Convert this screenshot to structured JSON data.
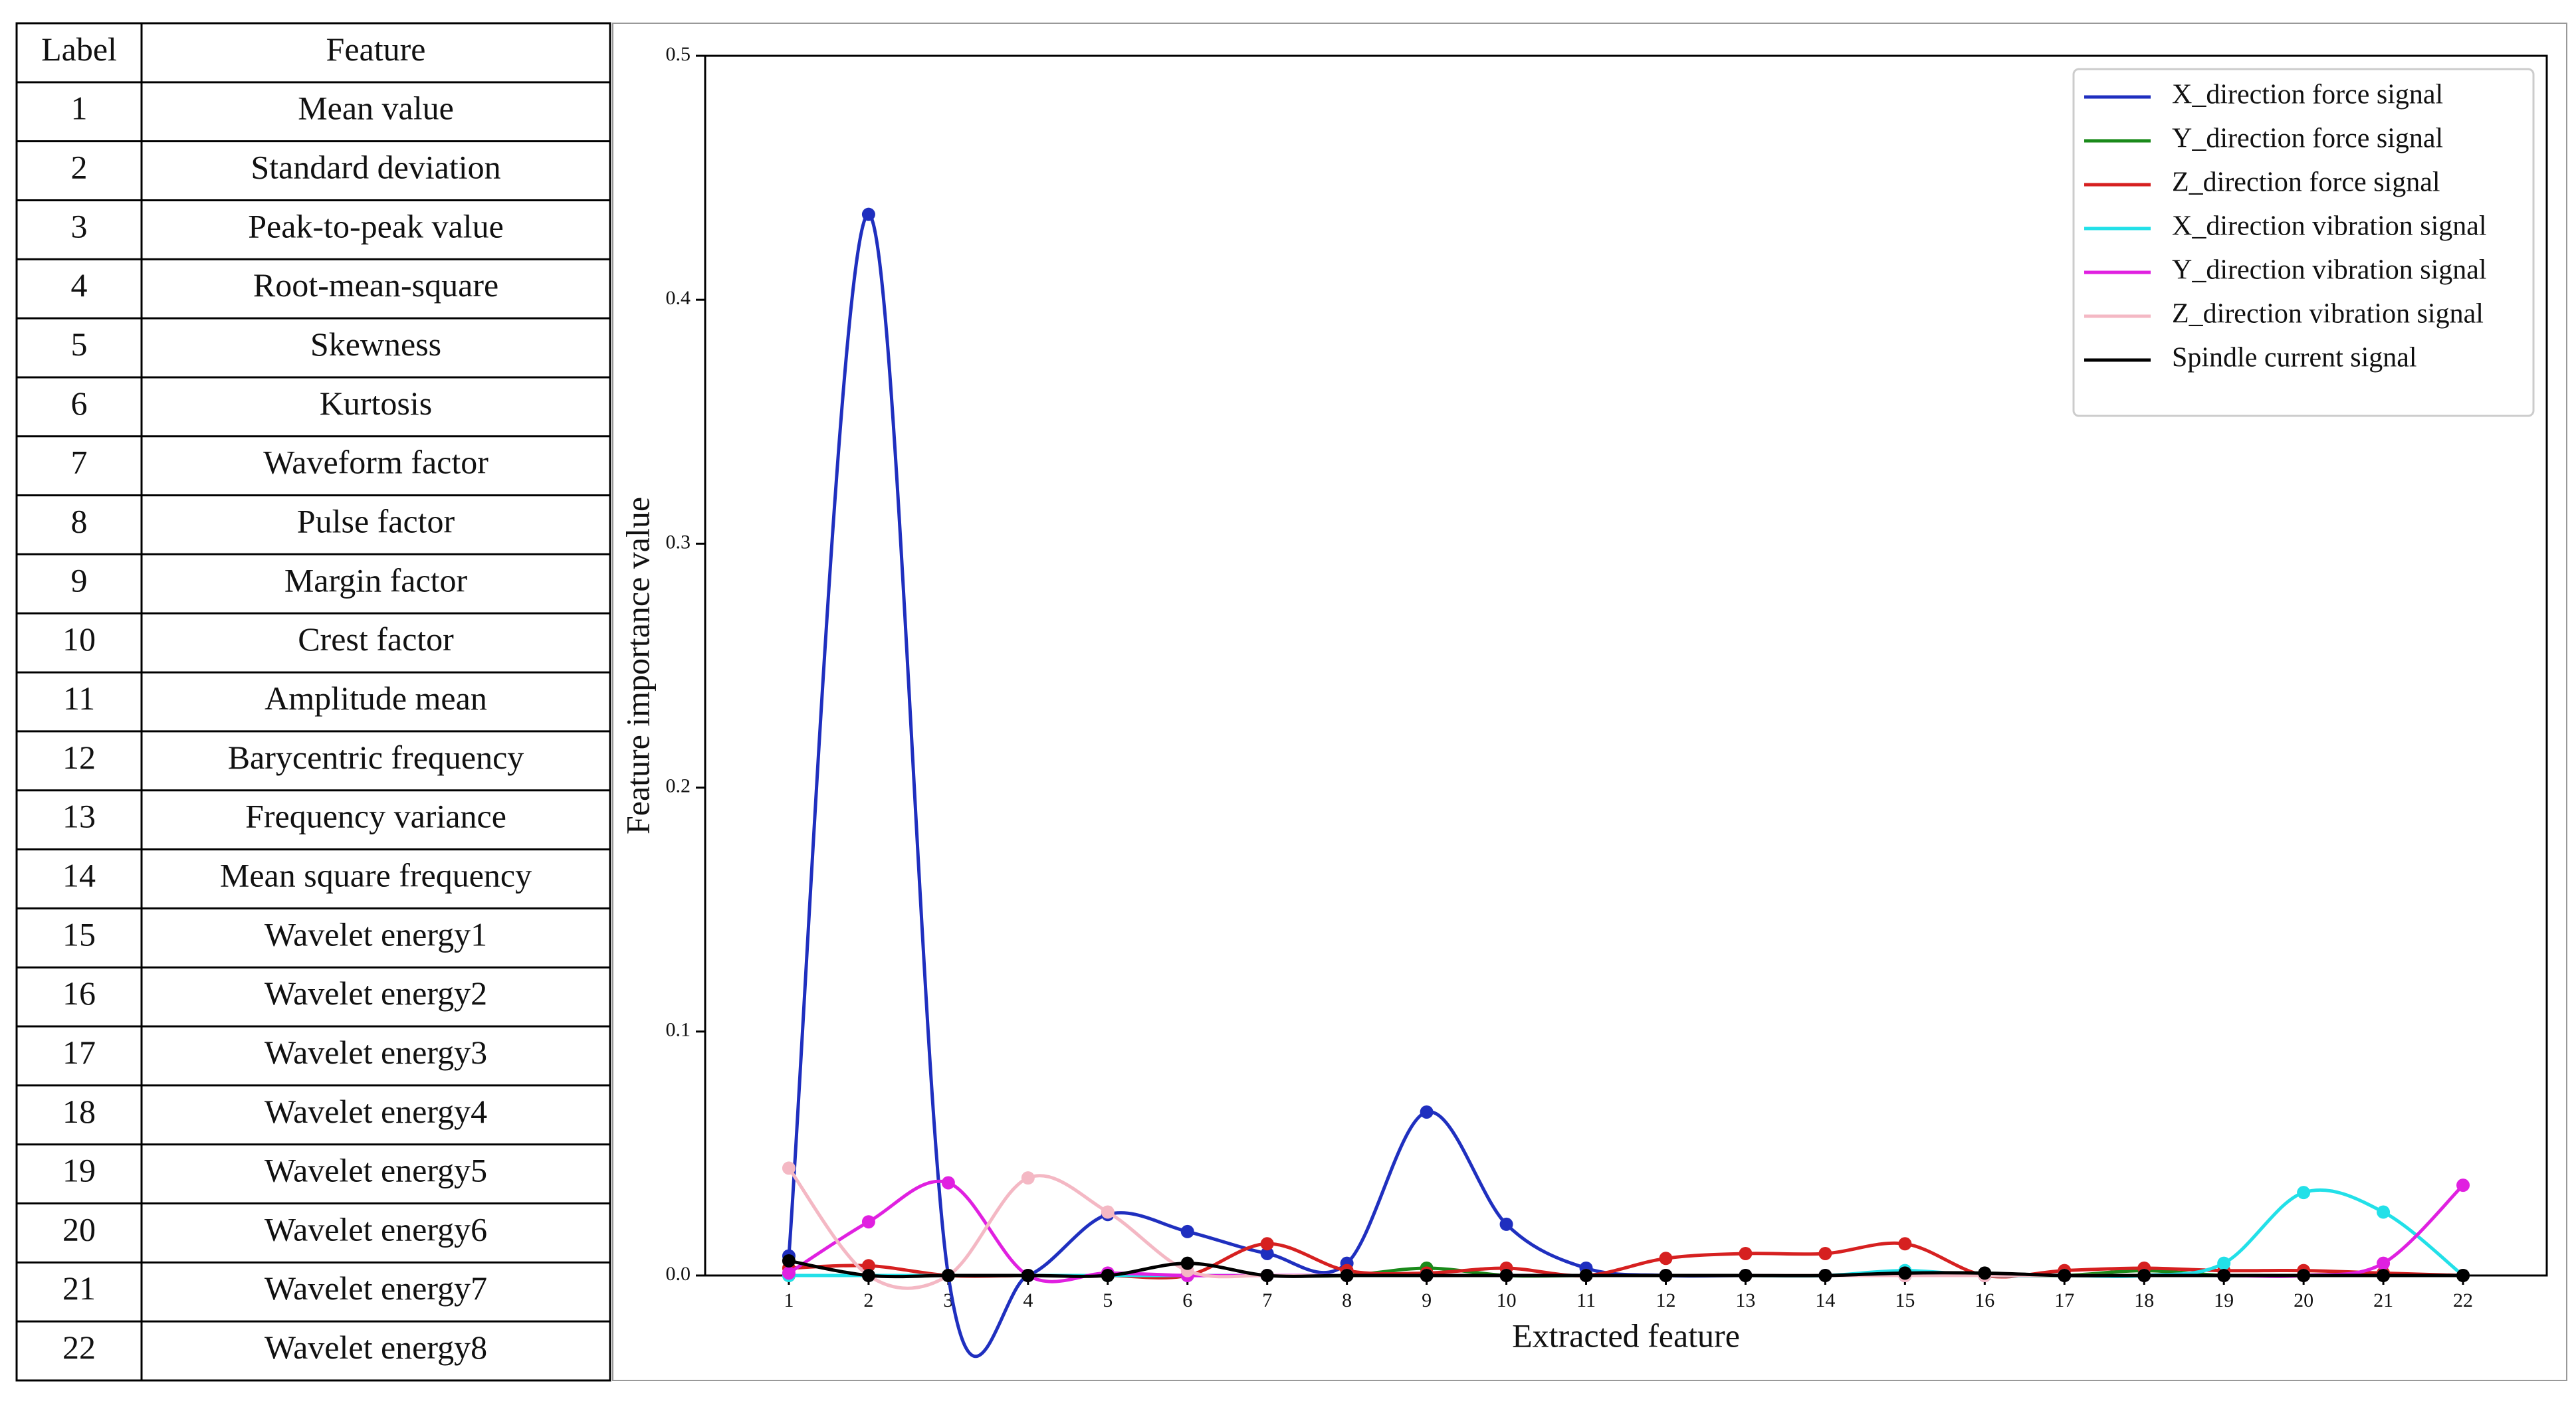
{
  "table": {
    "header": [
      "Label",
      "Feature"
    ],
    "rows": [
      [
        1,
        "Mean value"
      ],
      [
        2,
        "Standard deviation"
      ],
      [
        3,
        "Peak-to-peak value"
      ],
      [
        4,
        "Root-mean-square"
      ],
      [
        5,
        "Skewness"
      ],
      [
        6,
        "Kurtosis"
      ],
      [
        7,
        "Waveform factor"
      ],
      [
        8,
        "Pulse factor"
      ],
      [
        9,
        "Margin factor"
      ],
      [
        10,
        "Crest factor"
      ],
      [
        11,
        "Amplitude mean"
      ],
      [
        12,
        "Barycentric frequency"
      ],
      [
        13,
        "Frequency variance"
      ],
      [
        14,
        "Mean square frequency"
      ],
      [
        15,
        "Wavelet energy1"
      ],
      [
        16,
        "Wavelet energy2"
      ],
      [
        17,
        "Wavelet energy3"
      ],
      [
        18,
        "Wavelet energy4"
      ],
      [
        19,
        "Wavelet energy5"
      ],
      [
        20,
        "Wavelet energy6"
      ],
      [
        21,
        "Wavelet energy7"
      ],
      [
        22,
        "Wavelet energy8"
      ]
    ]
  },
  "chart_data": {
    "type": "line",
    "smooth": true,
    "markers": true,
    "grid": false,
    "legend": "upper right",
    "x_label": "Extracted feature",
    "y_label": "Feature importance value",
    "x": [
      1,
      2,
      3,
      4,
      5,
      6,
      7,
      8,
      9,
      10,
      11,
      12,
      13,
      14,
      15,
      16,
      17,
      18,
      19,
      20,
      21,
      22
    ],
    "xlim": [
      -0.05,
      23.05
    ],
    "xticks": [
      1,
      2,
      3,
      4,
      5,
      6,
      7,
      8,
      9,
      10,
      11,
      12,
      13,
      14,
      15,
      16,
      17,
      18,
      19,
      20,
      21,
      22
    ],
    "ylim": [
      0,
      0.5
    ],
    "yticks": [
      {
        "value": 0,
        "label": "0.0"
      },
      0.1,
      0.2,
      0.3,
      0.4,
      0.5
    ],
    "series": [
      {
        "name": "X_direction force signal",
        "color": "#1f2fbf",
        "values": [
          0.008,
          0.435,
          0,
          0,
          0.025,
          0.018,
          0.009,
          0.005,
          0.067,
          0.021,
          0.003,
          0,
          0,
          0,
          0,
          0,
          0,
          0,
          0,
          0,
          0,
          0
        ]
      },
      {
        "name": "Y_direction force signal",
        "color": "#1a8a1a",
        "values": [
          0,
          0,
          0,
          0,
          0,
          0,
          0,
          0,
          0.003,
          0,
          0,
          0,
          0,
          0,
          0,
          0,
          0,
          0.002,
          0,
          0,
          0,
          0
        ]
      },
      {
        "name": "Z_direction force signal",
        "color": "#d62020",
        "values": [
          0.003,
          0.004,
          0,
          0,
          0,
          0,
          0.013,
          0.002,
          0.001,
          0.003,
          0,
          0.007,
          0.009,
          0.009,
          0.013,
          0,
          0.002,
          0.003,
          0.002,
          0.002,
          0.001,
          0
        ]
      },
      {
        "name": "X_direction vibration signal",
        "color": "#22e0e8",
        "values": [
          0,
          0,
          0,
          0,
          0,
          0,
          0,
          0,
          0,
          0,
          0,
          0,
          0,
          0,
          0.002,
          0,
          0,
          0,
          0.005,
          0.034,
          0.026,
          0
        ]
      },
      {
        "name": "Y_direction vibration signal",
        "color": "#e020e0",
        "values": [
          0.001,
          0.022,
          0.038,
          0,
          0.001,
          0,
          0,
          0,
          0,
          0,
          0,
          0,
          0,
          0,
          0,
          0,
          0,
          0,
          0,
          0,
          0.005,
          0.037
        ]
      },
      {
        "name": "Z_direction vibration signal",
        "color": "#f4b8c4",
        "values": [
          0.044,
          0,
          0,
          0.04,
          0.026,
          0.002,
          0,
          0,
          0,
          0,
          0,
          0,
          0,
          0,
          0,
          0,
          0,
          0,
          0,
          0,
          0,
          0
        ]
      },
      {
        "name": "Spindle current signal",
        "color": "#000000",
        "values": [
          0.006,
          0,
          0,
          0,
          0,
          0.005,
          0,
          0,
          0,
          0,
          0,
          0,
          0,
          0,
          0.001,
          0.001,
          0,
          0,
          0,
          0,
          0,
          0
        ]
      }
    ]
  }
}
